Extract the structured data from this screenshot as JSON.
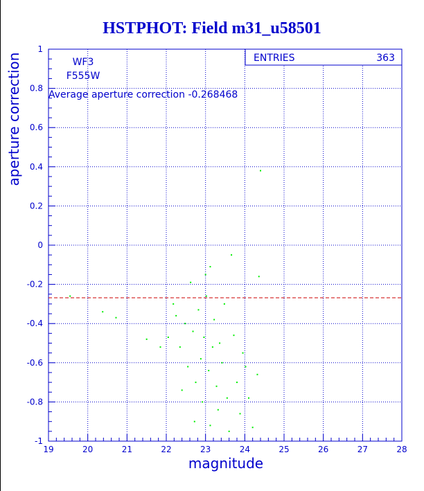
{
  "chart_data": {
    "type": "scatter",
    "title": "HSTPHOT: Field m31_u58501",
    "xlabel": "magnitude",
    "ylabel": "aperture correction",
    "xlim": [
      19,
      28
    ],
    "ylim": [
      -1,
      1
    ],
    "x_ticks": [
      "19",
      "20",
      "21",
      "22",
      "23",
      "24",
      "25",
      "26",
      "27",
      "28"
    ],
    "y_ticks": [
      "-1",
      "-0.8",
      "-0.6",
      "-0.4",
      "-0.2",
      "0",
      "0.2",
      "0.4",
      "0.6",
      "0.8",
      "1"
    ],
    "grid": true,
    "annotations": {
      "camera": "WF3",
      "filter": "F555W",
      "average_text": "Average aperture correction -0.268468"
    },
    "stats_box": {
      "label": "ENTRIES",
      "value": "363"
    },
    "average_line": {
      "y": -0.268468,
      "color": "#cc0000",
      "style": "dashed"
    },
    "colors": {
      "axis": "#0000cc",
      "points": "#00ee00",
      "text": "#0000cc"
    },
    "series": [
      {
        "values": [
          [
            19.55,
            -0.26
          ],
          [
            20.38,
            -0.34
          ],
          [
            20.72,
            -0.37
          ],
          [
            21.5,
            -0.48
          ],
          [
            21.85,
            -0.52
          ],
          [
            22.18,
            -0.3
          ],
          [
            22.25,
            -0.36
          ],
          [
            22.35,
            -0.52
          ],
          [
            22.48,
            -0.4
          ],
          [
            22.55,
            -0.62
          ],
          [
            22.62,
            -0.19
          ],
          [
            22.68,
            -0.44
          ],
          [
            22.75,
            -0.7
          ],
          [
            22.82,
            -0.33
          ],
          [
            22.88,
            -0.58
          ],
          [
            22.92,
            -0.8
          ],
          [
            22.96,
            -0.47
          ],
          [
            23.02,
            -0.26
          ],
          [
            23.08,
            -0.64
          ],
          [
            23.12,
            -0.92
          ],
          [
            23.18,
            -0.52
          ],
          [
            23.22,
            -0.38
          ],
          [
            23.28,
            -0.72
          ],
          [
            23.32,
            -0.84
          ],
          [
            23.36,
            -0.5
          ],
          [
            23.42,
            -0.6
          ],
          [
            23.48,
            -0.3
          ],
          [
            23.55,
            -0.78
          ],
          [
            23.6,
            -0.95
          ],
          [
            23.66,
            -0.05
          ],
          [
            23.72,
            -0.46
          ],
          [
            23.8,
            -0.7
          ],
          [
            23.88,
            -0.86
          ],
          [
            23.95,
            -0.55
          ],
          [
            24.02,
            -0.62
          ],
          [
            24.1,
            -0.78
          ],
          [
            24.2,
            -0.93
          ],
          [
            24.32,
            -0.66
          ],
          [
            24.36,
            -0.16
          ],
          [
            24.4,
            0.38
          ],
          [
            23.12,
            -0.11
          ],
          [
            22.05,
            -0.47
          ],
          [
            22.4,
            -0.74
          ],
          [
            22.72,
            -0.9
          ],
          [
            23.0,
            -0.15
          ]
        ]
      }
    ]
  }
}
